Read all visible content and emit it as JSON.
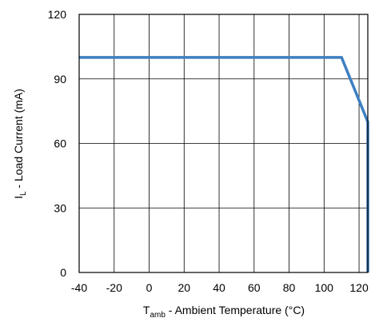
{
  "chart_data": {
    "type": "line",
    "xlabel_main": "T",
    "xlabel_sub": "amb",
    "xlabel_rest": " - Ambient Temperature (°C)",
    "ylabel_main": "I",
    "ylabel_sub": "L",
    "ylabel_rest": " - Load Current (mA)",
    "xlim": [
      -40,
      125
    ],
    "ylim": [
      0,
      120
    ],
    "x_ticks": [
      -40,
      -20,
      0,
      20,
      40,
      60,
      80,
      100,
      120
    ],
    "y_ticks": [
      0,
      30,
      60,
      90,
      120
    ],
    "grid": true,
    "series": [
      {
        "color": "#3d7fc1",
        "x": [
          -40,
          110,
          125,
          125
        ],
        "y": [
          100,
          100,
          70,
          0
        ]
      }
    ]
  }
}
